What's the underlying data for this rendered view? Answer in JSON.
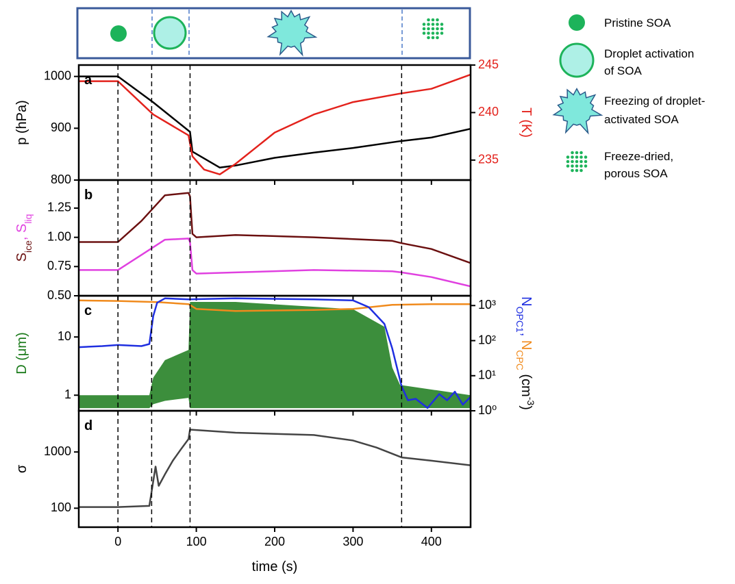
{
  "schematic": {
    "labels": [
      [
        "Pristine SOA"
      ],
      [
        "Droplet activation",
        "of SOA"
      ],
      [
        "Freezing of droplet-",
        "activated SOA"
      ],
      [
        "Freeze-dried,",
        "porous SOA"
      ]
    ]
  },
  "chart_data": [
    {
      "type": "line",
      "label": "a",
      "xlim": [
        -50,
        450
      ],
      "xticks": [
        0,
        100,
        200,
        300,
        400
      ],
      "show_xtick_labels": false,
      "vlines": [
        0,
        43,
        92,
        362
      ],
      "ylim": [
        800,
        1022
      ],
      "yticks": [
        800,
        900,
        1000
      ],
      "y2lim": [
        232.9,
        245
      ],
      "y2ticks": [
        235,
        240,
        245
      ],
      "y2color": "#e3221c",
      "ylabel": [
        {
          "text": "p (hPa)",
          "color": "#000000"
        }
      ],
      "y2label": [
        {
          "text": "T (K)",
          "color": "#e3221c"
        }
      ],
      "series": [
        {
          "color": "#000000",
          "x": [
            -50,
            0,
            45,
            92,
            95,
            130,
            150,
            200,
            250,
            300,
            360,
            400,
            450
          ],
          "values": [
            1000,
            1000,
            950,
            893,
            855,
            824,
            828,
            843,
            853,
            862,
            875,
            882,
            899
          ]
        },
        {
          "color": "#e3221c",
          "axis": "y2",
          "x": [
            -50,
            0,
            45,
            90,
            95,
            110,
            130,
            150,
            200,
            250,
            300,
            360,
            400,
            450
          ],
          "values": [
            243.3,
            243.3,
            239.8,
            237.6,
            235.4,
            234.0,
            233.5,
            234.6,
            237.9,
            239.8,
            241.1,
            242.0,
            242.5,
            244.0
          ]
        }
      ]
    },
    {
      "type": "line",
      "label": "b",
      "xlim": [
        -50,
        450
      ],
      "xticks": [
        0,
        100,
        200,
        300,
        400
      ],
      "show_xtick_labels": false,
      "vlines": [
        0,
        43,
        92,
        362
      ],
      "ylim": [
        0.5,
        1.49
      ],
      "yticks": [
        {
          "value": 0.5,
          "label": "0.50"
        },
        {
          "value": 0.75,
          "label": "0.75"
        },
        {
          "value": 1,
          "label": "1.00"
        },
        {
          "value": 1.25,
          "label": "1.25"
        }
      ],
      "ylabel": [
        {
          "text": "S",
          "color": "#6b1010"
        },
        {
          "text": "ice",
          "color": "#6b1010",
          "sub": true
        },
        {
          "text": ", S",
          "color": "#e040e0"
        },
        {
          "text": "liq",
          "color": "#e040e0",
          "sub": true
        }
      ],
      "series": [
        {
          "color": "#6b1010",
          "x": [
            -50,
            0,
            30,
            60,
            90,
            92,
            95,
            100,
            150,
            250,
            350,
            362,
            400,
            450
          ],
          "values": [
            0.96,
            0.96,
            1.14,
            1.36,
            1.38,
            1.35,
            1.03,
            1.0,
            1.02,
            1.0,
            0.97,
            0.95,
            0.9,
            0.78
          ]
        },
        {
          "color": "#e040e0",
          "x": [
            -50,
            0,
            30,
            60,
            90,
            92,
            95,
            100,
            150,
            250,
            350,
            362,
            400,
            450
          ],
          "values": [
            0.72,
            0.72,
            0.85,
            0.98,
            0.99,
            0.96,
            0.72,
            0.69,
            0.7,
            0.72,
            0.71,
            0.7,
            0.66,
            0.58
          ]
        }
      ]
    },
    {
      "type": "line",
      "label": "c",
      "xlim": [
        -50,
        450
      ],
      "xticks": [
        0,
        100,
        200,
        300,
        400
      ],
      "show_xtick_labels": false,
      "vlines": [
        0,
        43,
        92,
        362
      ],
      "ylim": [
        0.54,
        51
      ],
      "yscale": "log",
      "yticks": [
        1,
        10
      ],
      "y2lim": [
        1,
        1900
      ],
      "y2scale": "log",
      "y2ticks": [
        {
          "value": 1,
          "label": "10⁰"
        },
        {
          "value": 10,
          "label": "10¹"
        },
        {
          "value": 100,
          "label": "10²"
        },
        {
          "value": 1000,
          "label": "10³"
        }
      ],
      "y2color": "#000000",
      "ylabel": [
        {
          "text": "D (μm)",
          "color": "#1a7a1a"
        }
      ],
      "y2label": [
        {
          "text": "N",
          "color": "#1f2fe0"
        },
        {
          "text": "OPC1",
          "color": "#1f2fe0",
          "sub": true
        },
        {
          "text": ", ",
          "color": "#1f2fe0"
        },
        {
          "text": "N",
          "color": "#f08a1c"
        },
        {
          "text": "CPC",
          "color": "#f08a1c",
          "sub": true
        },
        {
          "text": " (cm",
          "color": "#000000"
        },
        {
          "text": "-3",
          "color": "#000000",
          "sup": true
        },
        {
          "text": ")",
          "color": "#000000"
        }
      ],
      "series": [
        {
          "type": "band",
          "color": "#1a7a1a",
          "x": [
            -50,
            40,
            45,
            60,
            90,
            92,
            150,
            300,
            340,
            350,
            360,
            450
          ],
          "values": [
            1.0,
            1.0,
            2,
            4,
            6,
            40,
            40,
            30,
            15,
            3,
            1.5,
            1.0
          ],
          "lower": [
            0.6,
            0.6,
            0.7,
            0.8,
            0.9,
            0.6,
            0.6,
            0.6,
            0.6,
            0.6,
            0.6,
            0.6
          ]
        },
        {
          "color": "#f08a1c",
          "axis": "y2",
          "x": [
            -50,
            0,
            50,
            90,
            100,
            150,
            250,
            300,
            350,
            400,
            450
          ],
          "values": [
            1400,
            1350,
            1250,
            1100,
            800,
            700,
            750,
            800,
            1050,
            1100,
            1100
          ]
        },
        {
          "color": "#1f2fe0",
          "axis": "y2",
          "x": [
            -50,
            -20,
            0,
            30,
            40,
            45,
            50,
            60,
            90,
            150,
            250,
            300,
            320,
            340,
            350,
            362,
            370,
            380,
            395,
            410,
            420,
            430,
            440,
            450
          ],
          "values": [
            65,
            70,
            75,
            70,
            80,
            500,
            1200,
            1600,
            1500,
            1600,
            1500,
            1400,
            900,
            300,
            60,
            5,
            2,
            2.2,
            1.2,
            3,
            2,
            3.5,
            1.5,
            2.5
          ]
        }
      ]
    },
    {
      "type": "line",
      "label": "d",
      "xlim": [
        -50,
        450
      ],
      "xticks": [
        0,
        100,
        200,
        300,
        400
      ],
      "show_xtick_labels": true,
      "vlines": [
        0,
        43,
        92,
        362
      ],
      "xlabel": "time (s)",
      "ylim": [
        46,
        5400
      ],
      "yscale": "log",
      "yticks": [
        100,
        1000
      ],
      "ylabel": [
        {
          "text": "σ",
          "color": "#000000"
        }
      ],
      "series": [
        {
          "color": "#444444",
          "x": [
            -50,
            0,
            40,
            43,
            48,
            52,
            60,
            70,
            80,
            90,
            92,
            150,
            250,
            300,
            330,
            362,
            400,
            450
          ],
          "values": [
            105,
            105,
            110,
            200,
            550,
            250,
            400,
            700,
            1100,
            1700,
            2500,
            2200,
            2000,
            1600,
            1200,
            800,
            700,
            580
          ]
        }
      ]
    }
  ]
}
